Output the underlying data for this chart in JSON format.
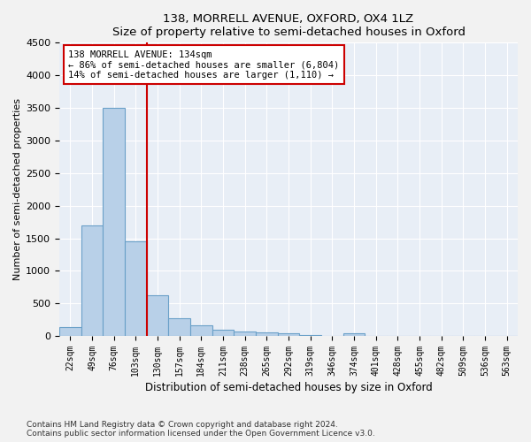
{
  "title1": "138, MORRELL AVENUE, OXFORD, OX4 1LZ",
  "title2": "Size of property relative to semi-detached houses in Oxford",
  "xlabel": "Distribution of semi-detached houses by size in Oxford",
  "ylabel": "Number of semi-detached properties",
  "categories": [
    "22sqm",
    "49sqm",
    "76sqm",
    "103sqm",
    "130sqm",
    "157sqm",
    "184sqm",
    "211sqm",
    "238sqm",
    "265sqm",
    "292sqm",
    "319sqm",
    "346sqm",
    "374sqm",
    "401sqm",
    "428sqm",
    "455sqm",
    "482sqm",
    "509sqm",
    "536sqm",
    "563sqm"
  ],
  "values": [
    130,
    1700,
    3500,
    1450,
    620,
    270,
    160,
    100,
    70,
    55,
    40,
    15,
    5,
    40,
    0,
    0,
    0,
    0,
    0,
    0,
    0
  ],
  "bar_color": "#b8d0e8",
  "bar_edge_color": "#6aa0c8",
  "highlight_color": "#cc0000",
  "annotation_text": "138 MORRELL AVENUE: 134sqm\n← 86% of semi-detached houses are smaller (6,804)\n14% of semi-detached houses are larger (1,110) →",
  "ylim": [
    0,
    4500
  ],
  "yticks": [
    0,
    500,
    1000,
    1500,
    2000,
    2500,
    3000,
    3500,
    4000,
    4500
  ],
  "red_line_index": 4,
  "footnote1": "Contains HM Land Registry data © Crown copyright and database right 2024.",
  "footnote2": "Contains public sector information licensed under the Open Government Licence v3.0.",
  "plot_bg_color": "#e8eef6",
  "fig_bg_color": "#f2f2f2"
}
